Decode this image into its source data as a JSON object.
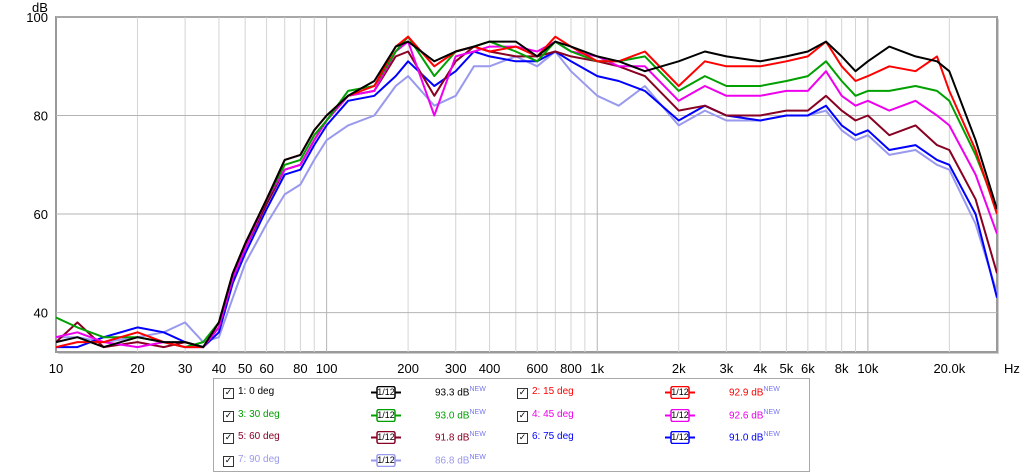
{
  "chart_data": {
    "type": "line",
    "title": "",
    "ylabel": "dB",
    "xlabel": "Hz",
    "x_scale": "log",
    "xlim": [
      10,
      30000
    ],
    "ylim": [
      32,
      100
    ],
    "x_ticks": [
      {
        "v": 10,
        "label": "10"
      },
      {
        "v": 20,
        "label": "20"
      },
      {
        "v": 30,
        "label": "30"
      },
      {
        "v": 40,
        "label": "40"
      },
      {
        "v": 50,
        "label": "50"
      },
      {
        "v": 60,
        "label": "60"
      },
      {
        "v": 80,
        "label": "80"
      },
      {
        "v": 100,
        "label": "100"
      },
      {
        "v": 200,
        "label": "200"
      },
      {
        "v": 300,
        "label": "300"
      },
      {
        "v": 400,
        "label": "400"
      },
      {
        "v": 600,
        "label": "600"
      },
      {
        "v": 800,
        "label": "800"
      },
      {
        "v": 1000,
        "label": "1k"
      },
      {
        "v": 2000,
        "label": "2k"
      },
      {
        "v": 3000,
        "label": "3k"
      },
      {
        "v": 4000,
        "label": "4k"
      },
      {
        "v": 5000,
        "label": "5k"
      },
      {
        "v": 6000,
        "label": "6k"
      },
      {
        "v": 8000,
        "label": "8k"
      },
      {
        "v": 10000,
        "label": "10k"
      },
      {
        "v": 20000,
        "label": "20.0k"
      }
    ],
    "y_ticks": [
      {
        "v": 100,
        "label": "100"
      },
      {
        "v": 80,
        "label": "80"
      },
      {
        "v": 60,
        "label": "60"
      },
      {
        "v": 40,
        "label": "40"
      }
    ],
    "grid": true,
    "x": [
      10,
      12,
      15,
      20,
      25,
      30,
      35,
      40,
      45,
      50,
      60,
      70,
      80,
      90,
      100,
      120,
      150,
      180,
      200,
      250,
      300,
      350,
      400,
      500,
      600,
      700,
      800,
      1000,
      1200,
      1500,
      2000,
      2500,
      3000,
      4000,
      5000,
      6000,
      7000,
      8000,
      9000,
      10000,
      12000,
      15000,
      18000,
      20000,
      25000,
      30000
    ],
    "series": [
      {
        "name": "1: 0 deg",
        "color": "#000000",
        "values": [
          34,
          35,
          33,
          35,
          34,
          34,
          33,
          38,
          48,
          54,
          63,
          71,
          72,
          77,
          80,
          84,
          87,
          94,
          95,
          91,
          93,
          94,
          95,
          95,
          92,
          95,
          94,
          92,
          91,
          89,
          91,
          93,
          92,
          91,
          92,
          93,
          95,
          92,
          89,
          91,
          94,
          92,
          91,
          89,
          75,
          61
        ]
      },
      {
        "name": "2: 15 deg",
        "color": "#ff0000",
        "values": [
          33,
          34,
          34,
          36,
          34,
          33,
          33,
          38,
          48,
          54,
          63,
          71,
          72,
          77,
          80,
          84,
          86,
          94,
          96,
          90,
          93,
          94,
          93,
          94,
          92,
          96,
          94,
          91,
          91,
          93,
          86,
          91,
          90,
          90,
          91,
          92,
          95,
          90,
          87,
          88,
          90,
          89,
          92,
          85,
          73,
          60
        ]
      },
      {
        "name": "3: 30 deg",
        "color": "#00a000",
        "values": [
          39,
          37,
          35,
          35,
          34,
          33,
          34,
          38,
          48,
          54,
          63,
          70,
          71,
          76,
          79,
          85,
          86,
          93,
          96,
          88,
          93,
          94,
          95,
          93,
          91,
          95,
          93,
          91,
          91,
          92,
          85,
          88,
          86,
          86,
          87,
          88,
          91,
          87,
          84,
          85,
          85,
          86,
          85,
          83,
          72,
          61
        ]
      },
      {
        "name": "4: 45 deg",
        "color": "#ee00ee",
        "values": [
          35,
          36,
          34,
          33,
          34,
          33,
          33,
          37,
          47,
          53,
          63,
          69,
          70,
          75,
          79,
          84,
          85,
          93,
          95,
          80,
          92,
          93,
          94,
          94,
          93,
          95,
          93,
          92,
          90,
          90,
          83,
          86,
          84,
          84,
          85,
          85,
          89,
          84,
          82,
          83,
          81,
          83,
          80,
          78,
          68,
          56
        ]
      },
      {
        "name": "5: 60 deg",
        "color": "#880022",
        "values": [
          34,
          38,
          33,
          34,
          33,
          34,
          33,
          37,
          47,
          53,
          62,
          69,
          70,
          75,
          79,
          84,
          85,
          92,
          93,
          84,
          91,
          94,
          93,
          92,
          92,
          93,
          92,
          91,
          90,
          88,
          81,
          82,
          80,
          80,
          81,
          81,
          84,
          81,
          79,
          80,
          76,
          78,
          74,
          73,
          63,
          48
        ]
      },
      {
        "name": "6: 75 deg",
        "color": "#0000ff",
        "values": [
          33,
          33,
          35,
          37,
          36,
          34,
          33,
          36,
          46,
          52,
          61,
          68,
          69,
          74,
          78,
          83,
          84,
          88,
          91,
          86,
          89,
          93,
          92,
          91,
          91,
          93,
          91,
          88,
          87,
          85,
          79,
          82,
          80,
          79,
          80,
          80,
          82,
          78,
          76,
          77,
          73,
          74,
          71,
          70,
          60,
          43
        ]
      },
      {
        "name": "7: 90 deg",
        "color": "#9999ee",
        "values": [
          35,
          35,
          34,
          35,
          36,
          38,
          34,
          35,
          43,
          50,
          58,
          64,
          66,
          71,
          75,
          78,
          80,
          86,
          88,
          82,
          84,
          90,
          90,
          92,
          90,
          93,
          89,
          84,
          82,
          86,
          78,
          81,
          79,
          79,
          80,
          80,
          81,
          77,
          75,
          76,
          72,
          73,
          70,
          69,
          58,
          44
        ]
      }
    ]
  },
  "legend": {
    "items": [
      {
        "checked": true,
        "label": "1: 0 deg",
        "color": "#000000",
        "smoothing": "1/12",
        "level": "93.3 dB",
        "badge": "NEW"
      },
      {
        "checked": true,
        "label": "2: 15 deg",
        "color": "#ff0000",
        "smoothing": "1/12",
        "level": "92.9 dB",
        "badge": "NEW"
      },
      {
        "checked": true,
        "label": "3: 30 deg",
        "color": "#00a000",
        "smoothing": "1/12",
        "level": "93.0 dB",
        "badge": "NEW"
      },
      {
        "checked": true,
        "label": "4: 45 deg",
        "color": "#ee00ee",
        "smoothing": "1/12",
        "level": "92.6 dB",
        "badge": "NEW"
      },
      {
        "checked": true,
        "label": "5: 60 deg",
        "color": "#880022",
        "smoothing": "1/12",
        "level": "91.8 dB",
        "badge": "NEW"
      },
      {
        "checked": true,
        "label": "6: 75 deg",
        "color": "#0000ff",
        "smoothing": "1/12",
        "level": "91.0 dB",
        "badge": "NEW"
      },
      {
        "checked": true,
        "label": "7: 90 deg",
        "color": "#9999ee",
        "smoothing": "1/12",
        "level": "86.8 dB",
        "badge": "NEW"
      }
    ]
  }
}
